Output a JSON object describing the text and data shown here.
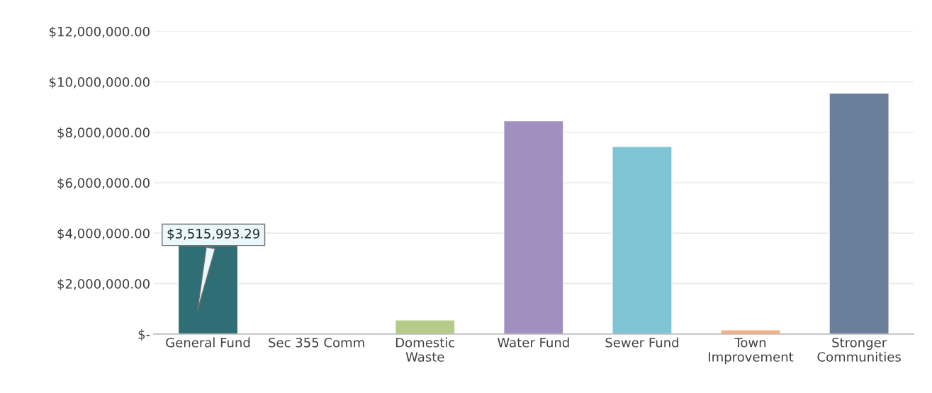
{
  "chart_data": {
    "type": "bar",
    "categories": [
      "General Fund",
      "Sec 355 Comm",
      "Domestic\nWaste",
      "Water Fund",
      "Sewer Fund",
      "Town\nImprovement",
      "Stronger\nCommunities"
    ],
    "values": [
      3515993.29,
      0,
      560000,
      8460000,
      7440000,
      170000,
      9550000
    ],
    "colors": [
      "#2e6e74",
      null,
      "#b5cc88",
      "#a08fbf",
      "#7fc4d4",
      "#f4b183",
      "#6a7f9b"
    ],
    "value_labels": [
      "$3,515,993.29",
      null,
      null,
      null,
      null,
      null,
      null
    ],
    "ylim": [
      0,
      12000000
    ],
    "yticks": [
      {
        "value": 0,
        "label": "$-"
      },
      {
        "value": 2000000,
        "label": "$2,000,000.00"
      },
      {
        "value": 4000000,
        "label": "$4,000,000.00"
      },
      {
        "value": 6000000,
        "label": "$6,000,000.00"
      },
      {
        "value": 8000000,
        "label": "$8,000,000.00"
      },
      {
        "value": 10000000,
        "label": "$10,000,000.00"
      },
      {
        "value": 12000000,
        "label": "$12,000,000.00"
      }
    ],
    "grid": "y"
  }
}
